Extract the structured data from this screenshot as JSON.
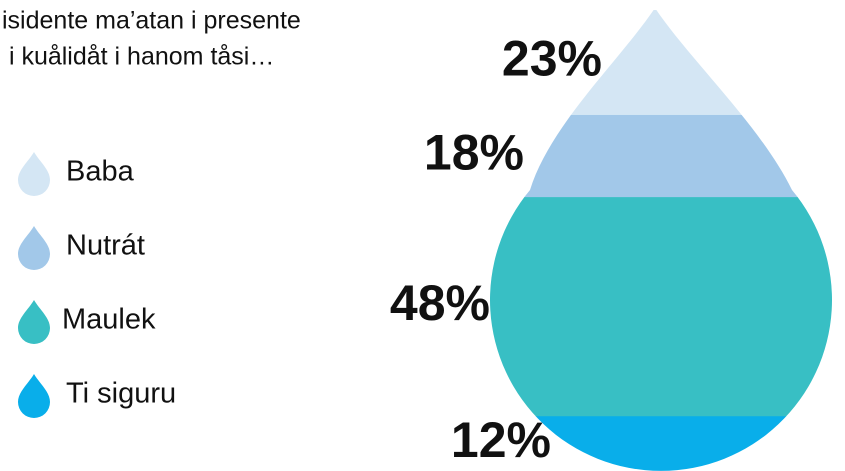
{
  "chart_data": {
    "type": "drop",
    "title": [
      "isidente ma’atan i presente",
      " i kuålidåt i hanom tåsi…"
    ],
    "categories": [
      "Baba",
      "Nutrát",
      "Maulek",
      "Ti siguru"
    ],
    "values": [
      23,
      18,
      48,
      12
    ],
    "value_labels": [
      "23%",
      "18%",
      "48%",
      "12%"
    ],
    "colors": [
      "#d4e6f4",
      "#a2c8e9",
      "#38bfc4",
      "#09aeea"
    ]
  }
}
